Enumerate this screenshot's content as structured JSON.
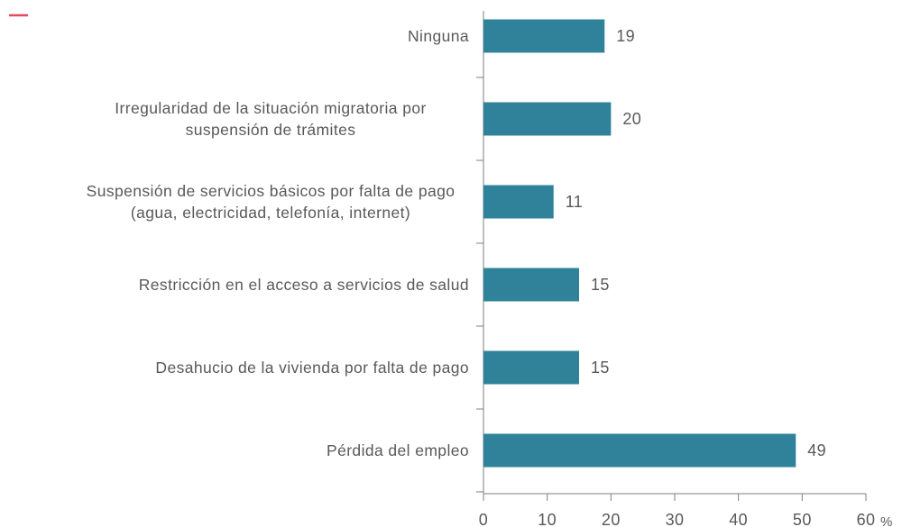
{
  "chart_data": {
    "type": "hbar",
    "categories": [
      "Ninguna",
      "Irregularidad de la situación migratoria por suspensión de trámites",
      "Suspensión de servicios básicos por falta de pago (agua, electricidad, telefonía, internet)",
      "Restricción en el acceso a servicios de salud",
      "Desahucio de la vivienda por falta de pago",
      "Pérdida del empleo"
    ],
    "values": [
      19,
      20,
      11,
      15,
      15,
      49
    ],
    "color": "#2f8299",
    "xlim": [
      0,
      60
    ],
    "xticks": [
      0,
      10,
      20,
      30,
      40,
      50,
      60
    ],
    "xlabel": "%"
  }
}
